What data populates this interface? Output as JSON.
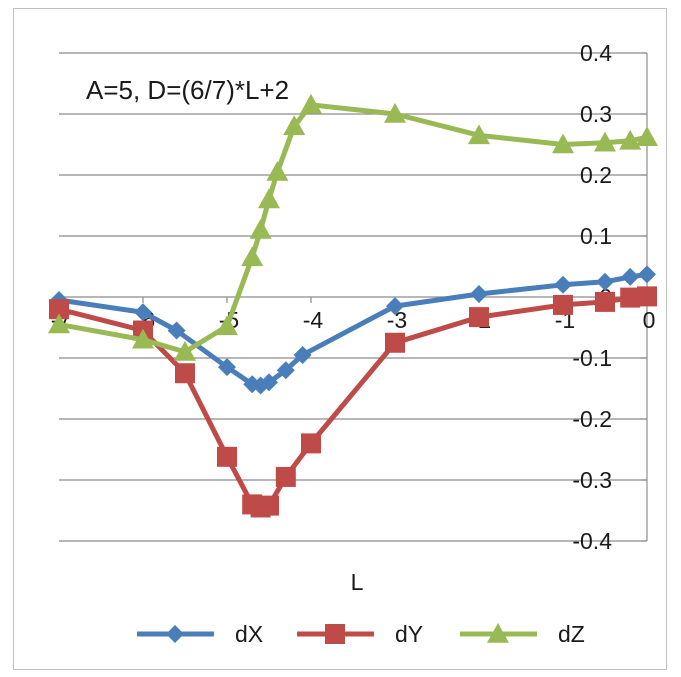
{
  "chart_data": {
    "type": "line",
    "annotation": "A=5, D=(6/7)*L+2",
    "xlabel": "L",
    "ylabel": "",
    "xlim": [
      -7,
      0
    ],
    "ylim": [
      -0.4,
      0.4
    ],
    "x_ticks": [
      -7,
      -6,
      -5,
      -4,
      -3,
      -2,
      -1,
      0
    ],
    "y_ticks": [
      0.4,
      0.3,
      0.2,
      0.1,
      0,
      -0.1,
      -0.2,
      -0.3,
      -0.4
    ],
    "grid": "horizontal",
    "legend": "bottom",
    "series": [
      {
        "name": "dX",
        "color": "#4a7ebb",
        "marker": "diamond",
        "x": [
          -7,
          -6,
          -5.6,
          -5,
          -4.7,
          -4.6,
          -4.5,
          -4.3,
          -4.1,
          -3,
          -2,
          -1,
          -0.5,
          -0.2,
          0
        ],
        "y": [
          -0.005,
          -0.025,
          -0.055,
          -0.115,
          -0.143,
          -0.145,
          -0.14,
          -0.12,
          -0.095,
          -0.015,
          0.005,
          0.02,
          0.025,
          0.033,
          0.037
        ]
      },
      {
        "name": "dY",
        "color": "#be4b48",
        "marker": "square",
        "x": [
          -7,
          -6,
          -5.5,
          -5,
          -4.7,
          -4.6,
          -4.5,
          -4.3,
          -4,
          -3,
          -2,
          -1,
          -0.5,
          -0.2,
          0
        ],
        "y": [
          -0.02,
          -0.055,
          -0.125,
          -0.262,
          -0.34,
          -0.345,
          -0.342,
          -0.295,
          -0.24,
          -0.075,
          -0.033,
          -0.013,
          -0.008,
          -0.001,
          0.001
        ]
      },
      {
        "name": "dZ",
        "color": "#98b954",
        "marker": "triangle",
        "x": [
          -7,
          -6,
          -5.5,
          -5,
          -4.7,
          -4.6,
          -4.5,
          -4.4,
          -4.2,
          -4,
          -3,
          -2,
          -1,
          -0.5,
          -0.2,
          0
        ],
        "y": [
          -0.045,
          -0.07,
          -0.09,
          -0.048,
          0.065,
          0.11,
          0.16,
          0.205,
          0.28,
          0.315,
          0.3,
          0.265,
          0.25,
          0.253,
          0.256,
          0.262
        ]
      }
    ]
  }
}
